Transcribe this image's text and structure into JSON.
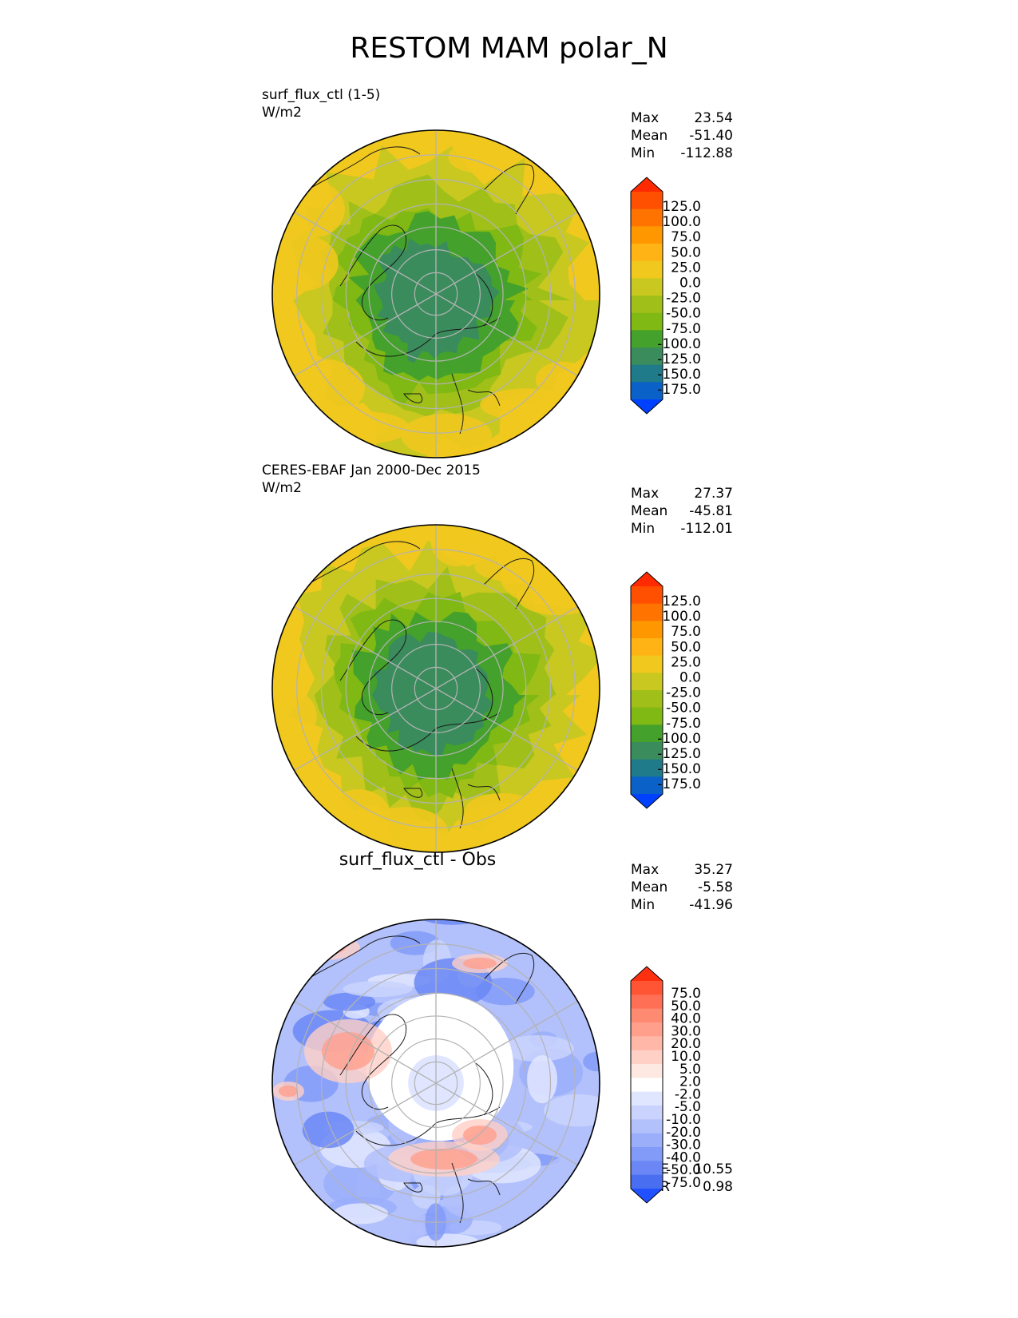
{
  "title": "RESTOM MAM polar_N",
  "chart_data": [
    {
      "type": "heatmap",
      "projection": "north-polar-stereographic",
      "title_left": "surf_flux_ctl (1-5)",
      "units": "W/m2",
      "stats": {
        "Max": "23.54",
        "Mean": "-51.40",
        "Min": "-112.88"
      },
      "colorbar": {
        "labels": [
          "125.0",
          "100.0",
          "75.0",
          "50.0",
          "25.0",
          "0.0",
          "-25.0",
          "-50.0",
          "-75.0",
          "-100.0",
          "-125.0",
          "-150.0",
          "-175.0"
        ],
        "colors": [
          "#ff2a00",
          "#ff4f00",
          "#ff7400",
          "#ff9800",
          "#ffb315",
          "#f0c81e",
          "#c8c820",
          "#a0c019",
          "#80b814",
          "#44a12b",
          "#3a8c5c",
          "#1f7a8a",
          "#0a62c8",
          "#0040ff"
        ]
      },
      "value_range": [
        -112.88,
        23.54
      ],
      "mean": -51.4
    },
    {
      "type": "heatmap",
      "projection": "north-polar-stereographic",
      "title_left": "CERES-EBAF Jan 2000-Dec 2015",
      "units": "W/m2",
      "stats": {
        "Max": "27.37",
        "Mean": "-45.81",
        "Min": "-112.01"
      },
      "colorbar": {
        "labels": [
          "125.0",
          "100.0",
          "75.0",
          "50.0",
          "25.0",
          "0.0",
          "-25.0",
          "-50.0",
          "-75.0",
          "-100.0",
          "-125.0",
          "-150.0",
          "-175.0"
        ],
        "colors": [
          "#ff2a00",
          "#ff4f00",
          "#ff7400",
          "#ff9800",
          "#ffb315",
          "#f0c81e",
          "#c8c820",
          "#a0c019",
          "#80b814",
          "#44a12b",
          "#3a8c5c",
          "#1f7a8a",
          "#0a62c8",
          "#0040ff"
        ]
      },
      "value_range": [
        -112.01,
        27.37
      ],
      "mean": -45.81
    },
    {
      "type": "heatmap",
      "projection": "north-polar-stereographic",
      "title_center": "surf_flux_ctl - Obs",
      "stats": {
        "Max": "35.27",
        "Mean": "-5.58",
        "Min": "-41.96"
      },
      "metrics": {
        "RMSE": "10.55",
        "CORR": "0.98"
      },
      "colorbar": {
        "labels": [
          "75.0",
          "50.0",
          "40.0",
          "30.0",
          "20.0",
          "10.0",
          "5.0",
          "2.0",
          "-2.0",
          "-5.0",
          "-10.0",
          "-20.0",
          "-30.0",
          "-40.0",
          "-50.0",
          "-75.0"
        ],
        "colors": [
          "#ff3010",
          "#ff5535",
          "#ff6f55",
          "#ff8a72",
          "#ff9f8c",
          "#ffb7a8",
          "#ffd0c6",
          "#fde8e2",
          "#ffffff",
          "#e0e6ff",
          "#c9d3fd",
          "#b2c0fb",
          "#9aaefa",
          "#839bf8",
          "#6a87f5",
          "#4a6ef0",
          "#2050ff"
        ]
      },
      "value_range": [
        -41.96,
        35.27
      ],
      "mean": -5.58
    }
  ]
}
